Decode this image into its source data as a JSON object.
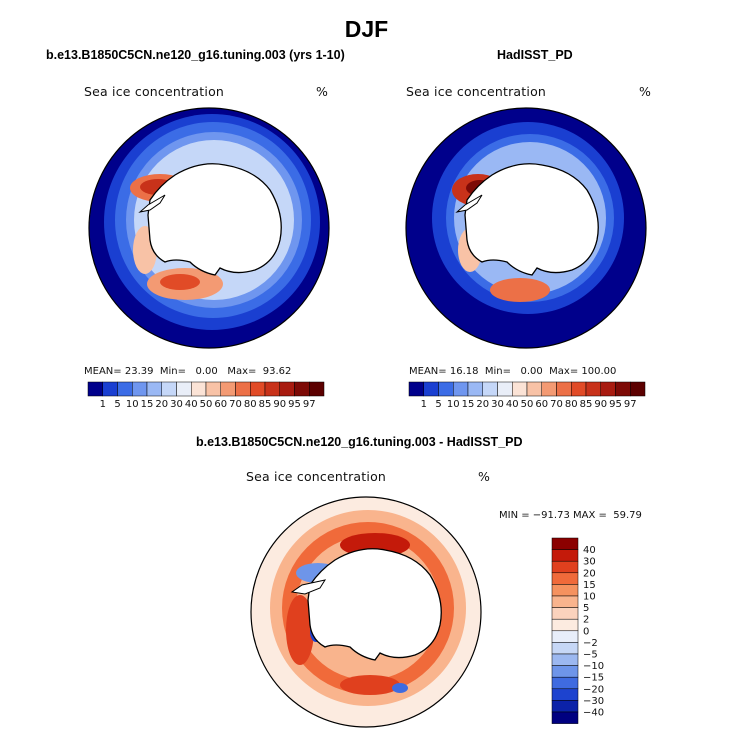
{
  "figure": {
    "title": "DJF"
  },
  "chart_data": [
    {
      "type": "heatmap",
      "projection": "south-polar-stereographic",
      "panel_title": "b.e13.B1850C5CN.ne120_g16.tuning.003 (yrs 1-10)",
      "variable": "Sea ice concentration",
      "units": "%",
      "stats": {
        "mean_label": "MEAN=",
        "mean": "23.39",
        "min_label": "Min=",
        "min": "0.00",
        "max_label": "Max=",
        "max": "93.62"
      },
      "colorbar": {
        "orientation": "horizontal",
        "levels": [
          "1",
          "5",
          "10",
          "15",
          "20",
          "30",
          "40",
          "50",
          "60",
          "70",
          "80",
          "85",
          "90",
          "95",
          "97"
        ],
        "colors": [
          "#00008b",
          "#1a3fd1",
          "#3b6ce6",
          "#6f96ef",
          "#9ab8f4",
          "#c5d7f8",
          "#e9eef8",
          "#fbe3d6",
          "#f8c2a6",
          "#f39a73",
          "#ec7047",
          "#e14b27",
          "#c8321a",
          "#a81b10",
          "#7d0a06",
          "#5c0000"
        ]
      }
    },
    {
      "type": "heatmap",
      "projection": "south-polar-stereographic",
      "panel_title": "HadISST_PD",
      "variable": "Sea ice concentration",
      "units": "%",
      "stats": {
        "mean_label": "MEAN=",
        "mean": "16.18",
        "min_label": "Min=",
        "min": "0.00",
        "max_label": "Max=",
        "max": "100.00"
      },
      "colorbar": {
        "orientation": "horizontal",
        "levels": [
          "1",
          "5",
          "10",
          "15",
          "20",
          "30",
          "40",
          "50",
          "60",
          "70",
          "80",
          "85",
          "90",
          "95",
          "97"
        ],
        "colors": [
          "#00008b",
          "#1a3fd1",
          "#3b6ce6",
          "#6f96ef",
          "#9ab8f4",
          "#c5d7f8",
          "#e9eef8",
          "#fbe3d6",
          "#f8c2a6",
          "#f39a73",
          "#ec7047",
          "#e14b27",
          "#c8321a",
          "#a81b10",
          "#7d0a06",
          "#5c0000"
        ]
      }
    },
    {
      "type": "heatmap",
      "projection": "south-polar-stereographic",
      "panel_title": "b.e13.B1850C5CN.ne120_g16.tuning.003 - HadISST_PD",
      "variable": "Sea ice concentration",
      "units": "%",
      "stats_text": "MIN = −91.73 MAX =  59.79",
      "colorbar": {
        "orientation": "vertical",
        "levels": [
          "40",
          "30",
          "20",
          "15",
          "10",
          "5",
          "2",
          "0",
          "−2",
          "−5",
          "−10",
          "−15",
          "−20",
          "−30",
          "−40"
        ],
        "colors": [
          "#8b0000",
          "#c41a0a",
          "#e0401e",
          "#f06a3a",
          "#f5925f",
          "#f9b48d",
          "#fbd3bd",
          "#fcebe0",
          "#e8eefa",
          "#c6d7f6",
          "#9cb8f0",
          "#6e95e9",
          "#3f6be0",
          "#1d43cf",
          "#0b22a8",
          "#000080"
        ]
      }
    }
  ]
}
